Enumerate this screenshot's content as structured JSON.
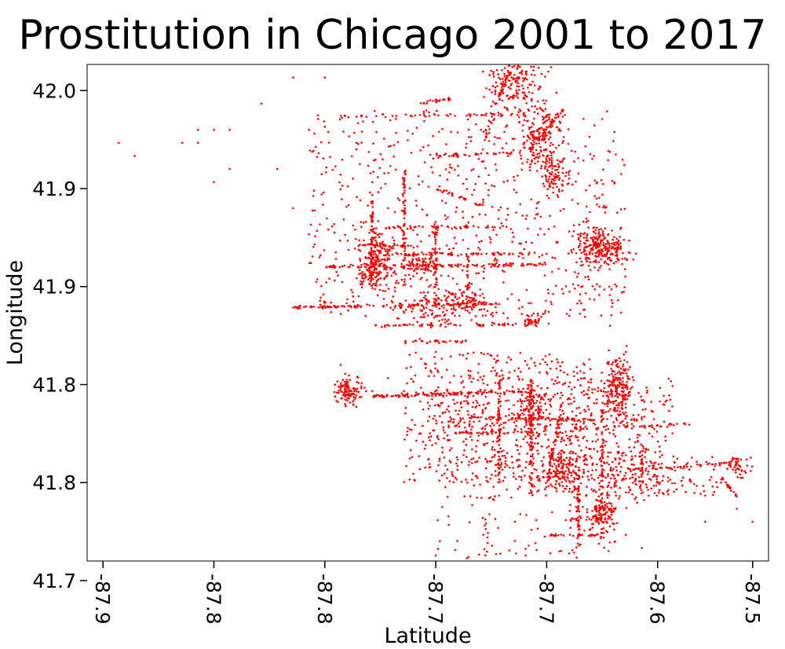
{
  "chart_data": {
    "type": "scatter",
    "title": "Prostitution in Chicago 2001 to 2017",
    "xlabel": "Latitude",
    "ylabel": "Longitude",
    "xlim": [
      -87.94,
      -87.51
    ],
    "ylim": [
      41.64,
      42.02
    ],
    "x_ticks": [
      {
        "value": -87.93,
        "label": "-87.9"
      },
      {
        "value": -87.86,
        "label": "-87.8"
      },
      {
        "value": -87.79,
        "label": "-87.8"
      },
      {
        "value": -87.72,
        "label": "-87.7"
      },
      {
        "value": -87.65,
        "label": "-87.7"
      },
      {
        "value": -87.58,
        "label": "-87.6"
      },
      {
        "value": -87.52,
        "label": "-87.5"
      }
    ],
    "y_ticks": [
      {
        "value": 42.0,
        "label": "42.0"
      },
      {
        "value": 41.925,
        "label": "41.9"
      },
      {
        "value": 41.85,
        "label": "41.9"
      },
      {
        "value": 41.775,
        "label": "41.8"
      },
      {
        "value": 41.7,
        "label": "41.8"
      },
      {
        "value": 41.625,
        "label": "41.7"
      }
    ],
    "marker_color": "#ff0000",
    "grid": false,
    "series": [
      {
        "points": [
          [
            -87.94,
            41.96
          ],
          [
            -87.92,
            41.96
          ],
          [
            -87.91,
            41.95
          ],
          [
            -87.88,
            41.96
          ],
          [
            -87.87,
            41.97
          ],
          [
            -87.87,
            41.96
          ],
          [
            -87.86,
            41.97
          ],
          [
            -87.86,
            41.93
          ],
          [
            -87.85,
            41.94
          ],
          [
            -87.85,
            41.97
          ],
          [
            -87.83,
            41.99
          ],
          [
            -87.82,
            41.94
          ],
          [
            -87.81,
            42.01
          ],
          [
            -87.81,
            41.91
          ],
          [
            -87.8,
            41.97
          ],
          [
            -87.8,
            41.89
          ],
          [
            -87.79,
            42.01
          ],
          [
            -87.78,
            41.79
          ],
          [
            -87.77,
            41.98
          ],
          [
            -87.77,
            41.96
          ],
          [
            -87.76,
            41.93
          ],
          [
            -87.76,
            41.92
          ],
          [
            -87.76,
            41.77
          ],
          [
            -87.75,
            41.91
          ],
          [
            -87.75,
            41.78
          ],
          [
            -87.74,
            41.83
          ],
          [
            -87.74,
            41.77
          ],
          [
            -87.73,
            41.81
          ],
          [
            -87.72,
            41.8
          ],
          [
            -87.72,
            41.73
          ],
          [
            -87.7,
            41.7
          ],
          [
            -87.69,
            41.66
          ],
          [
            -87.68,
            41.69
          ],
          [
            -87.68,
            41.75
          ],
          [
            -87.67,
            41.67
          ],
          [
            -87.66,
            41.72
          ],
          [
            -87.65,
            41.98
          ],
          [
            -87.64,
            41.96
          ],
          [
            -87.63,
            41.86
          ],
          [
            -87.63,
            41.67
          ],
          [
            -87.62,
            41.84
          ],
          [
            -87.61,
            41.82
          ],
          [
            -87.6,
            41.8
          ],
          [
            -87.6,
            41.66
          ],
          [
            -87.59,
            41.75
          ],
          [
            -87.59,
            41.65
          ],
          [
            -87.58,
            41.7
          ],
          [
            -87.57,
            41.72
          ],
          [
            -87.56,
            41.71
          ],
          [
            -87.55,
            41.69
          ],
          [
            -87.55,
            41.67
          ],
          [
            -87.54,
            41.7
          ],
          [
            -87.53,
            41.68
          ],
          [
            -87.52,
            41.67
          ],
          [
            -87.51,
            41.66
          ]
        ],
        "lines": [
          {
            "from": [
              -87.79,
              41.865
            ],
            "to": [
              -87.65,
              41.867
            ],
            "count": 120
          },
          {
            "from": [
              -87.75,
              41.875
            ],
            "to": [
              -87.66,
              41.875
            ],
            "count": 60
          },
          {
            "from": [
              -87.81,
              41.834
            ],
            "to": [
              -87.68,
              41.837
            ],
            "count": 110
          },
          {
            "from": [
              -87.76,
              41.82
            ],
            "to": [
              -87.67,
              41.821
            ],
            "count": 60
          },
          {
            "from": [
              -87.74,
              41.808
            ],
            "to": [
              -87.7,
              41.808
            ],
            "count": 30
          },
          {
            "from": [
              -87.76,
              41.766
            ],
            "to": [
              -87.66,
              41.77
            ],
            "count": 110
          },
          {
            "from": [
              -87.7,
              41.75
            ],
            "to": [
              -87.62,
              41.748
            ],
            "count": 70
          },
          {
            "from": [
              -87.71,
              41.738
            ],
            "to": [
              -87.64,
              41.738
            ],
            "count": 50
          },
          {
            "from": [
              -87.63,
              41.741
            ],
            "to": [
              -87.56,
              41.745
            ],
            "count": 35
          },
          {
            "from": [
              -87.6,
              41.71
            ],
            "to": [
              -87.53,
              41.715
            ],
            "count": 40
          },
          {
            "from": [
              -87.62,
              41.68
            ],
            "to": [
              -87.6,
              41.68
            ],
            "count": 20
          },
          {
            "from": [
              -87.64,
              41.672
            ],
            "to": [
              -87.61,
              41.672
            ],
            "count": 20
          },
          {
            "from": [
              -87.65,
              41.66
            ],
            "to": [
              -87.62,
              41.66
            ],
            "count": 25
          },
          {
            "from": [
              -87.78,
              41.98
            ],
            "to": [
              -87.66,
              41.982
            ],
            "count": 45
          },
          {
            "from": [
              -87.72,
              41.95
            ],
            "to": [
              -87.67,
              41.952
            ],
            "count": 35
          },
          {
            "from": [
              -87.76,
              41.895
            ],
            "to": [
              -87.67,
              41.896
            ],
            "count": 45
          },
          {
            "from": [
              -87.77,
              41.882
            ],
            "to": [
              -87.73,
              41.881
            ],
            "count": 25
          },
          {
            "from": [
              -87.76,
              41.855
            ],
            "to": [
              -87.76,
              41.915
            ],
            "count": 70
          },
          {
            "from": [
              -87.74,
              41.85
            ],
            "to": [
              -87.74,
              41.94
            ],
            "count": 60
          },
          {
            "from": [
              -87.72,
              41.84
            ],
            "to": [
              -87.72,
              41.9
            ],
            "count": 40
          },
          {
            "from": [
              -87.7,
              41.83
            ],
            "to": [
              -87.7,
              41.88
            ],
            "count": 30
          },
          {
            "from": [
              -87.68,
              41.7
            ],
            "to": [
              -87.68,
              41.78
            ],
            "count": 70
          },
          {
            "from": [
              -87.66,
              41.69
            ],
            "to": [
              -87.66,
              41.78
            ],
            "count": 80
          },
          {
            "from": [
              -87.65,
              41.7
            ],
            "to": [
              -87.64,
              41.76
            ],
            "count": 55
          },
          {
            "from": [
              -87.63,
              41.65
            ],
            "to": [
              -87.63,
              41.72
            ],
            "count": 55
          },
          {
            "from": [
              -87.615,
              41.7
            ],
            "to": [
              -87.615,
              41.76
            ],
            "count": 45
          },
          {
            "from": [
              -87.59,
              41.69
            ],
            "to": [
              -87.59,
              41.73
            ],
            "count": 30
          },
          {
            "from": [
              -87.66,
              41.955
            ],
            "to": [
              -87.64,
              41.985
            ],
            "count": 40
          },
          {
            "from": [
              -87.68,
              41.995
            ],
            "to": [
              -87.67,
              42.025
            ],
            "count": 35
          },
          {
            "from": [
              -87.72,
              41.925
            ],
            "to": [
              -87.69,
              41.912
            ],
            "count": 25
          },
          {
            "from": [
              -87.73,
              41.99
            ],
            "to": [
              -87.71,
              41.994
            ],
            "count": 20
          },
          {
            "from": [
              -87.69,
              41.96
            ],
            "to": [
              -87.68,
              41.995
            ],
            "count": 25
          },
          {
            "from": [
              -87.54,
              41.704
            ],
            "to": [
              -87.53,
              41.69
            ],
            "count": 25
          }
        ],
        "clusters": [
          {
            "center": [
              -87.67,
              42.01
            ],
            "sx": 0.01,
            "sy": 0.012,
            "count": 200
          },
          {
            "center": [
              -87.655,
              41.965
            ],
            "sx": 0.006,
            "sy": 0.012,
            "count": 170
          },
          {
            "center": [
              -87.645,
              41.937
            ],
            "sx": 0.005,
            "sy": 0.008,
            "count": 90
          },
          {
            "center": [
              -87.615,
              41.88
            ],
            "sx": 0.008,
            "sy": 0.007,
            "count": 260
          },
          {
            "center": [
              -87.76,
              41.86
            ],
            "sx": 0.005,
            "sy": 0.006,
            "count": 110
          },
          {
            "center": [
              -87.755,
              41.877
            ],
            "sx": 0.004,
            "sy": 0.005,
            "count": 70
          },
          {
            "center": [
              -87.73,
              41.866
            ],
            "sx": 0.006,
            "sy": 0.004,
            "count": 80
          },
          {
            "center": [
              -87.72,
              41.835
            ],
            "sx": 0.01,
            "sy": 0.006,
            "count": 90
          },
          {
            "center": [
              -87.7,
              41.838
            ],
            "sx": 0.008,
            "sy": 0.004,
            "count": 70
          },
          {
            "center": [
              -87.66,
              41.823
            ],
            "sx": 0.005,
            "sy": 0.003,
            "count": 40
          },
          {
            "center": [
              -87.775,
              41.77
            ],
            "sx": 0.004,
            "sy": 0.005,
            "count": 110
          },
          {
            "center": [
              -87.66,
              41.755
            ],
            "sx": 0.004,
            "sy": 0.01,
            "count": 110
          },
          {
            "center": [
              -87.605,
              41.772
            ],
            "sx": 0.004,
            "sy": 0.012,
            "count": 200
          },
          {
            "center": [
              -87.64,
              41.71
            ],
            "sx": 0.005,
            "sy": 0.008,
            "count": 110
          },
          {
            "center": [
              -87.615,
              41.675
            ],
            "sx": 0.004,
            "sy": 0.01,
            "count": 110
          },
          {
            "center": [
              -87.53,
              41.712
            ],
            "sx": 0.004,
            "sy": 0.004,
            "count": 45
          },
          {
            "center": [
              -87.7,
              41.75
            ],
            "sx": 0.012,
            "sy": 0.015,
            "count": 90
          },
          {
            "center": [
              -87.6,
              41.72
            ],
            "sx": 0.012,
            "sy": 0.015,
            "count": 60
          }
        ],
        "scatter_regions": [
          {
            "x": [
              -87.8,
              -87.6
            ],
            "y": [
              41.825,
              41.985
            ],
            "count": 700
          },
          {
            "x": [
              -87.74,
              -87.62
            ],
            "y": [
              41.7,
              41.8
            ],
            "count": 520
          },
          {
            "x": [
              -87.66,
              -87.57
            ],
            "y": [
              41.69,
              41.78
            ],
            "count": 320
          },
          {
            "x": [
              -87.62,
              -87.54
            ],
            "y": [
              41.69,
              41.72
            ],
            "count": 120
          },
          {
            "x": [
              -87.72,
              -87.6
            ],
            "y": [
              41.63,
              41.72
            ],
            "count": 160
          }
        ]
      }
    ]
  }
}
